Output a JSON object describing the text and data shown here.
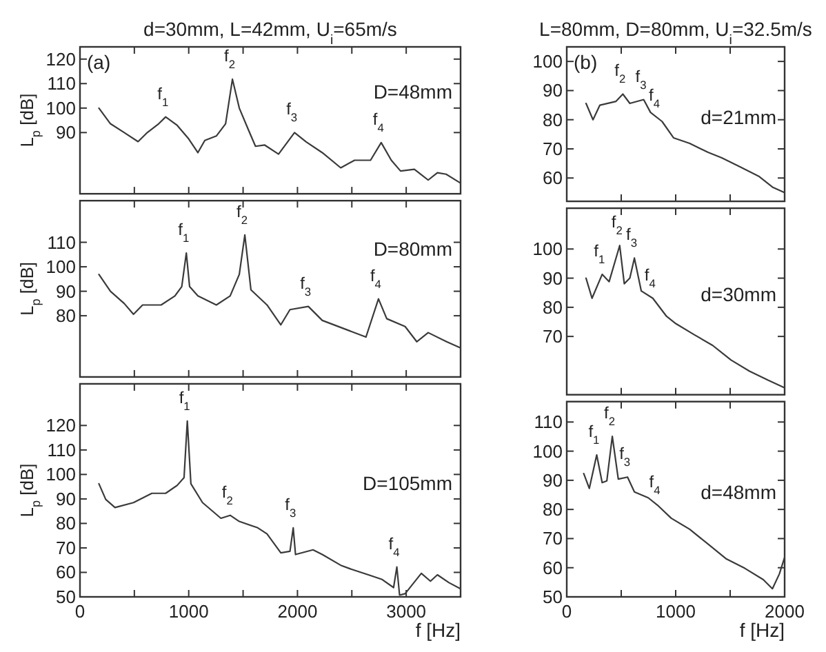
{
  "chart_data": [
    {
      "type": "line",
      "title": "d=30mm, L=42mm, U$_{i}$=65m/s",
      "ylabel": "L$_{p}$ [dB]",
      "xlim": [
        0,
        3500
      ],
      "xticks": [
        0,
        {
          "value": 500,
          "label": null
        },
        1000,
        {
          "value": 1500,
          "label": null
        },
        2000,
        {
          "value": 2500,
          "label": null
        },
        3000
      ],
      "ylim": [
        65,
        125
      ],
      "yticks": [
        90,
        100,
        110,
        120
      ],
      "tick_labels": "y",
      "annotations": [
        "(a)",
        {
          "text": "f$_{1}$",
          "x": 788,
          "y": 96.4
        },
        {
          "text": "f$_{2}$",
          "x": 1402,
          "y": 111.8
        },
        {
          "text": "f$_{3}$",
          "x": 1973,
          "y": 90
        },
        {
          "text": "f$_{4}$",
          "x": 2770,
          "y": 85.9
        }
      ],
      "series": [
        {
          "name": "D=48mm",
          "color": "#3a3a3a",
          "x": [
            174,
            280,
            407,
            534,
            619,
            724,
            788,
            893,
            1000,
            1084,
            1148,
            1254,
            1339,
            1402,
            1465,
            1550,
            1614,
            1699,
            1826,
            1973,
            2080,
            2228,
            2398,
            2525,
            2672,
            2770,
            2863,
            2948,
            3075,
            3202,
            3287,
            3367,
            3494
          ],
          "values": [
            100,
            93.6,
            90,
            86.3,
            90,
            93.6,
            96.4,
            93,
            87.4,
            81.8,
            86.8,
            88.6,
            93.6,
            111.8,
            100,
            91,
            84.4,
            84.9,
            81.2,
            90,
            86.2,
            81.8,
            75.6,
            78.7,
            78.7,
            85.9,
            78.7,
            74.3,
            75,
            70.6,
            73.6,
            73,
            69.5
          ]
        }
      ]
    },
    {
      "type": "line",
      "ylabel": "L$_{p}$ [dB]",
      "xlim": [
        0,
        3500
      ],
      "xticks": [
        0,
        {
          "value": 500,
          "label": null
        },
        1000,
        {
          "value": 1500,
          "label": null
        },
        2000,
        {
          "value": 2500,
          "label": null
        },
        3000
      ],
      "ylim": [
        55,
        127
      ],
      "yticks": [
        80,
        90,
        100,
        110
      ],
      "tick_labels": "y",
      "annotations": [
        {
          "text": "f$_{1}$",
          "x": 978,
          "y": 105.6
        },
        {
          "text": "f$_{2}$",
          "x": 1516,
          "y": 113
        },
        {
          "text": "f$_{3}$",
          "x": 2100,
          "y": 83.8
        },
        {
          "text": "f$_{4}$",
          "x": 2745,
          "y": 86.9
        }
      ],
      "series": [
        {
          "name": "D=80mm",
          "color": "#3a3a3a",
          "x": [
            174,
            280,
            407,
            492,
            576,
            746,
            873,
            936,
            978,
            1008,
            1084,
            1254,
            1381,
            1465,
            1516,
            1572,
            1720,
            1847,
            1931,
            2100,
            2228,
            2482,
            2630,
            2745,
            2821,
            2990,
            3097,
            3202,
            3371,
            3499
          ],
          "values": [
            96.9,
            90,
            85,
            80.6,
            84.4,
            84.4,
            88.1,
            91.9,
            105.6,
            91.9,
            88.1,
            84.4,
            88.1,
            96.9,
            113,
            90.6,
            84.4,
            76.3,
            82.5,
            83.8,
            78.1,
            73.8,
            71.3,
            86.9,
            78.8,
            75.6,
            69.4,
            73.1,
            69.4,
            66.9
          ]
        }
      ]
    },
    {
      "type": "line",
      "ylabel": "L$_{p}$ [dB]",
      "xlabel": "f [Hz]",
      "xlim": [
        0,
        3500
      ],
      "xticks": [
        0,
        {
          "value": 500,
          "label": null
        },
        1000,
        {
          "value": 1500,
          "label": null
        },
        2000,
        {
          "value": 2500,
          "label": null
        },
        3000
      ],
      "ylim": [
        50,
        137
      ],
      "yticks": [
        50,
        60,
        70,
        80,
        90,
        100,
        110,
        120
      ],
      "annotations": [
        {
          "text": "f$_{1}$",
          "x": 987,
          "y": 121.8
        },
        {
          "text": "f$_{2}$",
          "x": 1381,
          "y": 83.3
        },
        {
          "text": "f$_{3}$",
          "x": 1961,
          "y": 78.2
        },
        {
          "text": "f$_{4}$",
          "x": 2914,
          "y": 62.2
        }
      ],
      "series": [
        {
          "name": "D=105mm",
          "color": "#3a3a3a",
          "x": [
            174,
            237,
            322,
            492,
            661,
            788,
            893,
            957,
            987,
            1020,
            1127,
            1296,
            1381,
            1465,
            1635,
            1720,
            1847,
            1931,
            1961,
            1982,
            2143,
            2228,
            2398,
            2482,
            2652,
            2779,
            2884,
            2914,
            2939,
            2990,
            3139,
            3223,
            3287,
            3393,
            3499
          ],
          "values": [
            96.2,
            89.8,
            86.5,
            88.5,
            92.3,
            92.3,
            95.5,
            98.7,
            121.8,
            96.2,
            88.5,
            82.1,
            83.3,
            80.8,
            78.2,
            75.7,
            68,
            68.6,
            78.2,
            67.3,
            69.2,
            67.3,
            62.9,
            61.5,
            59,
            57.1,
            53.8,
            62.2,
            50.7,
            51.3,
            59.6,
            56.4,
            59,
            55.8,
            53.3
          ]
        }
      ]
    },
    {
      "type": "line",
      "title": "L=80mm, D=80mm, U$_{i}$=32.5m/s",
      "xlim": [
        0,
        2000
      ],
      "xticks": [
        0,
        {
          "value": 500,
          "label": null
        },
        1000,
        {
          "value": 1500,
          "label": null
        },
        2000
      ],
      "ylim": [
        52,
        105
      ],
      "yticks": [
        60,
        70,
        80,
        90,
        100
      ],
      "tick_labels": "y",
      "annotations": [
        "(b)",
        {
          "text": "f$_{2}$",
          "x": 515,
          "y": 88.8
        },
        {
          "text": "f$_{3}$",
          "x": 706,
          "y": 86.9
        },
        {
          "text": "f$_{4}$",
          "x": 830,
          "y": 80.5
        }
      ],
      "series": [
        {
          "name": "d=21mm",
          "color": "#3a3a3a",
          "x": [
            177,
            241,
            304,
            452,
            515,
            579,
            706,
            769,
            875,
            980,
            1128,
            1297,
            1423,
            1593,
            1762,
            1888,
            2000
          ],
          "values": [
            85.6,
            80,
            85,
            86.3,
            88.8,
            85.6,
            86.9,
            82.5,
            79.4,
            73.8,
            71.9,
            68.8,
            66.9,
            63.8,
            60.6,
            56.9,
            55
          ]
        }
      ]
    },
    {
      "type": "line",
      "xlim": [
        0,
        2000
      ],
      "xticks": [
        0,
        {
          "value": 500,
          "label": null
        },
        1000,
        {
          "value": 1500,
          "label": null
        },
        2000
      ],
      "ylim": [
        50,
        114
      ],
      "yticks": [
        70,
        80,
        90,
        100
      ],
      "tick_labels": "y",
      "annotations": [
        {
          "text": "f$_{1}$",
          "x": 325,
          "y": 91.3
        },
        {
          "text": "f$_{2}$",
          "x": 486,
          "y": 101.2
        },
        {
          "text": "f$_{3}$",
          "x": 621,
          "y": 96.9
        },
        {
          "text": "f$_{4}$",
          "x": 790,
          "y": 83.1
        }
      ],
      "series": [
        {
          "name": "d=30mm",
          "color": "#3a3a3a",
          "x": [
            177,
            232,
            325,
            389,
            486,
            528,
            579,
            621,
            684,
            790,
            916,
            1001,
            1170,
            1340,
            1508,
            1677,
            1847,
            1994
          ],
          "values": [
            90,
            83.1,
            91.3,
            88.8,
            101.2,
            88.1,
            90,
            96.9,
            85.6,
            83.1,
            76.9,
            74.4,
            70.6,
            66.9,
            61.9,
            58.1,
            55,
            52.5
          ]
        }
      ]
    },
    {
      "type": "line",
      "xlabel": "f [Hz]",
      "xlim": [
        0,
        2000
      ],
      "xticks": [
        0,
        {
          "value": 500,
          "label": null
        },
        1000,
        {
          "value": 1500,
          "label": null
        },
        2000
      ],
      "ylim": [
        50,
        117
      ],
      "yticks": [
        50,
        60,
        70,
        80,
        90,
        100,
        110
      ],
      "annotations": [
        {
          "text": "f$_{1}$",
          "x": 275,
          "y": 98.7
        },
        {
          "text": "f$_{2}$",
          "x": 418,
          "y": 105.1
        },
        {
          "text": "f$_{3}$",
          "x": 558,
          "y": 91.1
        },
        {
          "text": "f$_{4}$",
          "x": 832,
          "y": 81.5
        }
      ],
      "series": [
        {
          "name": "d=48mm",
          "color": "#3a3a3a",
          "x": [
            156,
            207,
            275,
            325,
            368,
            418,
            473,
            558,
            621,
            748,
            832,
            959,
            1128,
            1297,
            1466,
            1635,
            1804,
            1888,
            1952,
            2000
          ],
          "values": [
            92.3,
            87.2,
            98.7,
            89.2,
            89.8,
            105.1,
            90.4,
            91.1,
            86,
            84,
            81.5,
            77,
            73.2,
            68.1,
            63,
            59.8,
            55.9,
            52.8,
            57.9,
            63.6
          ]
        }
      ]
    }
  ]
}
